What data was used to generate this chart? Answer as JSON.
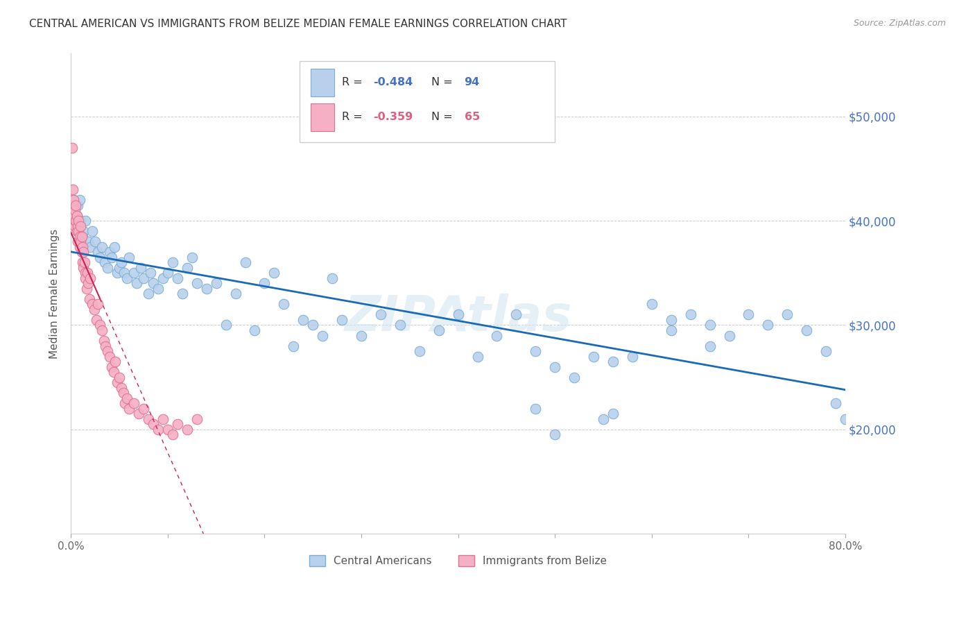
{
  "title": "CENTRAL AMERICAN VS IMMIGRANTS FROM BELIZE MEDIAN FEMALE EARNINGS CORRELATION CHART",
  "source": "Source: ZipAtlas.com",
  "ylabel": "Median Female Earnings",
  "xlim": [
    0.0,
    0.8
  ],
  "ylim": [
    10000,
    56000
  ],
  "yticks": [
    20000,
    30000,
    40000,
    50000
  ],
  "ytick_labels": [
    "$20,000",
    "$30,000",
    "$40,000",
    "$50,000"
  ],
  "blue_R": -0.484,
  "blue_N": 94,
  "pink_R": -0.359,
  "pink_N": 65,
  "blue_color": "#b8d0eb",
  "blue_edge": "#7aadd4",
  "pink_color": "#f5b0c5",
  "pink_edge": "#e07090",
  "trend_blue": "#1a6bb5",
  "trend_pink": "#cc2255",
  "watermark": "ZIPAtlas",
  "blue_x": [
    0.002,
    0.003,
    0.004,
    0.005,
    0.006,
    0.007,
    0.008,
    0.009,
    0.01,
    0.012,
    0.013,
    0.015,
    0.018,
    0.02,
    0.022,
    0.025,
    0.028,
    0.03,
    0.032,
    0.035,
    0.038,
    0.04,
    0.042,
    0.045,
    0.048,
    0.05,
    0.052,
    0.055,
    0.058,
    0.06,
    0.065,
    0.068,
    0.072,
    0.075,
    0.08,
    0.082,
    0.085,
    0.09,
    0.095,
    0.1,
    0.105,
    0.11,
    0.115,
    0.12,
    0.125,
    0.13,
    0.14,
    0.15,
    0.16,
    0.17,
    0.18,
    0.19,
    0.2,
    0.21,
    0.22,
    0.23,
    0.24,
    0.25,
    0.26,
    0.27,
    0.28,
    0.3,
    0.32,
    0.34,
    0.36,
    0.38,
    0.4,
    0.42,
    0.44,
    0.46,
    0.48,
    0.5,
    0.52,
    0.54,
    0.56,
    0.58,
    0.6,
    0.62,
    0.64,
    0.66,
    0.68,
    0.7,
    0.72,
    0.74,
    0.76,
    0.78,
    0.79,
    0.8,
    0.66,
    0.62,
    0.55,
    0.5,
    0.48,
    0.56
  ],
  "blue_y": [
    41000,
    42000,
    40000,
    39500,
    40500,
    41500,
    39000,
    42000,
    40000,
    38500,
    39000,
    40000,
    38000,
    37500,
    39000,
    38000,
    37000,
    36500,
    37500,
    36000,
    35500,
    37000,
    36500,
    37500,
    35000,
    35500,
    36000,
    35000,
    34500,
    36500,
    35000,
    34000,
    35500,
    34500,
    33000,
    35000,
    34000,
    33500,
    34500,
    35000,
    36000,
    34500,
    33000,
    35500,
    36500,
    34000,
    33500,
    34000,
    30000,
    33000,
    36000,
    29500,
    34000,
    35000,
    32000,
    28000,
    30500,
    30000,
    29000,
    34500,
    30500,
    29000,
    31000,
    30000,
    27500,
    29500,
    31000,
    27000,
    29000,
    31000,
    27500,
    26000,
    25000,
    27000,
    26500,
    27000,
    32000,
    29500,
    31000,
    30000,
    29000,
    31000,
    30000,
    31000,
    29500,
    27500,
    22500,
    21000,
    28000,
    30500,
    21000,
    19500,
    22000,
    21500
  ],
  "pink_x": [
    0.001,
    0.002,
    0.002,
    0.003,
    0.003,
    0.004,
    0.004,
    0.005,
    0.005,
    0.006,
    0.006,
    0.007,
    0.007,
    0.008,
    0.008,
    0.009,
    0.009,
    0.01,
    0.01,
    0.011,
    0.011,
    0.012,
    0.012,
    0.013,
    0.013,
    0.014,
    0.015,
    0.015,
    0.016,
    0.017,
    0.018,
    0.019,
    0.02,
    0.022,
    0.024,
    0.026,
    0.028,
    0.03,
    0.032,
    0.034,
    0.036,
    0.038,
    0.04,
    0.042,
    0.044,
    0.046,
    0.048,
    0.05,
    0.052,
    0.054,
    0.056,
    0.058,
    0.06,
    0.065,
    0.07,
    0.075,
    0.08,
    0.085,
    0.09,
    0.095,
    0.1,
    0.105,
    0.11,
    0.12,
    0.13
  ],
  "pink_y": [
    47000,
    43000,
    41500,
    42000,
    40500,
    41000,
    39500,
    40000,
    41500,
    39000,
    40500,
    39500,
    38000,
    40000,
    39000,
    38500,
    37500,
    39500,
    38000,
    37000,
    38500,
    37500,
    36000,
    37000,
    35500,
    36000,
    35000,
    34500,
    33500,
    35000,
    34000,
    32500,
    34500,
    32000,
    31500,
    30500,
    32000,
    30000,
    29500,
    28500,
    28000,
    27500,
    27000,
    26000,
    25500,
    26500,
    24500,
    25000,
    24000,
    23500,
    22500,
    23000,
    22000,
    22500,
    21500,
    22000,
    21000,
    20500,
    20000,
    21000,
    20000,
    19500,
    20500,
    20000,
    21000
  ]
}
